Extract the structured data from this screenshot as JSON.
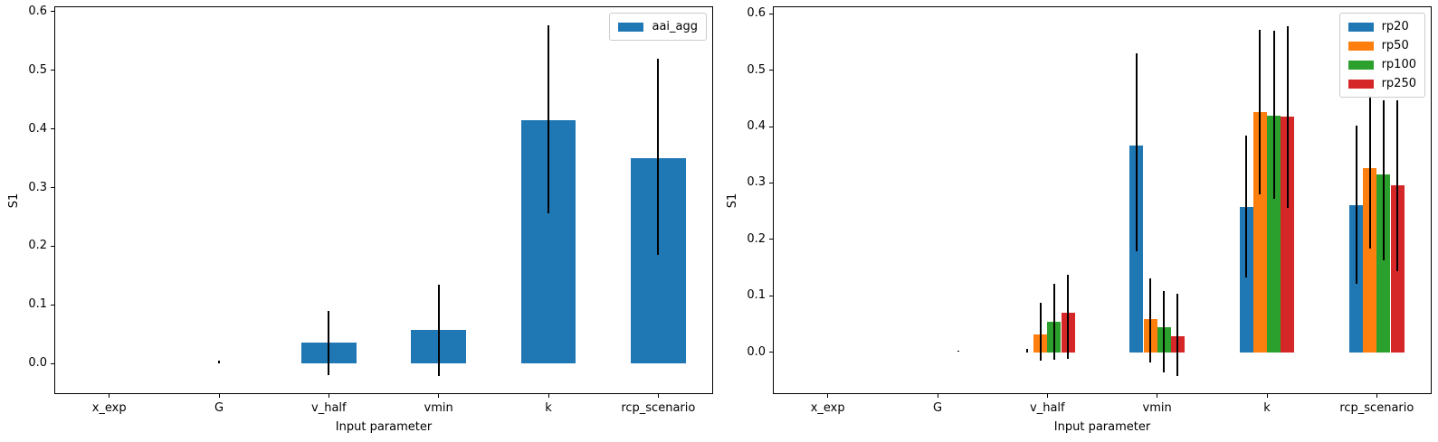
{
  "style_hints": {
    "background": "#ffffff",
    "axis_color": "#000000",
    "error_bar_color": "#000000",
    "legend_border_color": "#cccccc"
  },
  "chart_data": [
    {
      "type": "bar",
      "title": "",
      "xlabel": "Input parameter",
      "ylabel": "S1",
      "categories": [
        "x_exp",
        "G",
        "v_half",
        "vmin",
        "k",
        "rcp_scenario"
      ],
      "yticks": [
        "0.0",
        "0.1",
        "0.2",
        "0.3",
        "0.4",
        "0.5",
        "0.6"
      ],
      "ylim": [
        -0.052,
        0.609
      ],
      "grid": false,
      "legend_position": "upper right",
      "series": [
        {
          "name": "aai_agg",
          "color": "#1f77b4",
          "values": [
            0,
            0.001,
            0.036,
            0.058,
            0.415,
            0.35
          ],
          "err_low": [
            null,
            0.001,
            -0.019,
            -0.021,
            0.256,
            0.186
          ],
          "err_high": [
            null,
            0.005,
            0.089,
            0.135,
            0.577,
            0.519
          ]
        }
      ]
    },
    {
      "type": "bar",
      "title": "",
      "xlabel": "Input parameter",
      "ylabel": "S1",
      "categories": [
        "x_exp",
        "G",
        "v_half",
        "vmin",
        "k",
        "rcp_scenario"
      ],
      "yticks": [
        "0.0",
        "0.1",
        "0.2",
        "0.3",
        "0.4",
        "0.5",
        "0.6"
      ],
      "ylim": [
        -0.074,
        0.613
      ],
      "grid": false,
      "legend_position": "upper right",
      "series": [
        {
          "name": "rp20",
          "color": "#1f77b4",
          "values": [
            0,
            0,
            0.001,
            0.366,
            0.257,
            0.26
          ],
          "err_low": [
            null,
            null,
            -0.001,
            0.179,
            0.133,
            0.121
          ],
          "err_high": [
            null,
            null,
            0.006,
            0.529,
            0.384,
            0.401
          ]
        },
        {
          "name": "rp50",
          "color": "#ff7f0e",
          "values": [
            0,
            0,
            0.032,
            0.059,
            0.425,
            0.326
          ],
          "err_low": [
            null,
            null,
            -0.014,
            -0.018,
            0.28,
            0.184
          ],
          "err_high": [
            null,
            null,
            0.087,
            0.131,
            0.572,
            0.455
          ]
        },
        {
          "name": "rp100",
          "color": "#2ca02c",
          "values": [
            0,
            0,
            0.054,
            0.044,
            0.42,
            0.315
          ],
          "err_low": [
            null,
            null,
            -0.013,
            -0.036,
            0.272,
            0.163
          ],
          "err_high": [
            null,
            null,
            0.122,
            0.108,
            0.569,
            0.447
          ]
        },
        {
          "name": "rp250",
          "color": "#d62728",
          "values": [
            0,
            0.001,
            0.07,
            0.029,
            0.417,
            0.296
          ],
          "err_low": [
            null,
            0.0005,
            -0.011,
            -0.042,
            0.256,
            0.144
          ],
          "err_high": [
            null,
            0.003,
            0.138,
            0.103,
            0.577,
            0.446
          ]
        }
      ]
    }
  ]
}
